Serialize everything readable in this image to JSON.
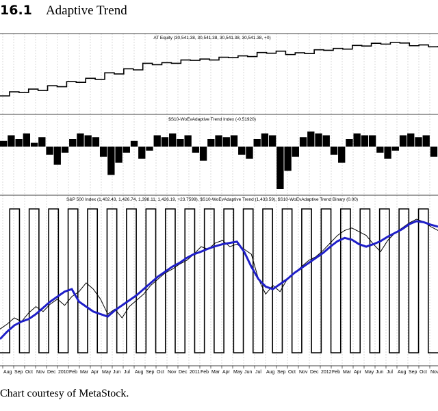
{
  "figure": {
    "number": "16.1",
    "title": "Adaptive Trend",
    "credit": "Chart courtesy of MetaStock."
  },
  "chart_data": [
    {
      "type": "line",
      "title": "AT Equity (30,541.38, 30,541.38, 30,541.38, 30,541.38, +0)",
      "series": [
        {
          "values": [
            100,
            130,
            125,
            150,
            140,
            175,
            168,
            205,
            200,
            230,
            222,
            270,
            262,
            300,
            292,
            340,
            330,
            345,
            340,
            365,
            362,
            372,
            365,
            385,
            382,
            395,
            390,
            420,
            415,
            430,
            405,
            418,
            412,
            440,
            436,
            450,
            445,
            472,
            468,
            488,
            482,
            494,
            490,
            470,
            476,
            462,
            468
          ]
        }
      ],
      "color": "#000000"
    },
    {
      "type": "bar",
      "title": "$S10-WoEvAdaptive Trend Index (-0.51920)",
      "series": [
        {
          "values": [
            0.15,
            0.3,
            0.2,
            0.35,
            0.1,
            0.25,
            -0.4,
            -0.9,
            -0.3,
            0.2,
            0.35,
            0.3,
            0.25,
            -0.5,
            -1.4,
            -0.8,
            -0.3,
            0.15,
            -0.6,
            -0.2,
            0.3,
            0.25,
            0.35,
            0.2,
            0.3,
            -0.3,
            -0.7,
            0.2,
            0.3,
            0.25,
            0.3,
            -0.4,
            -0.6,
            0.2,
            0.35,
            0.3,
            -2.1,
            -1.2,
            -0.5,
            0.25,
            0.4,
            0.35,
            0.3,
            -0.4,
            -0.8,
            0.2,
            0.35,
            0.3,
            0.3,
            -0.3,
            -0.6,
            -0.2,
            0.3,
            0.35,
            0.25,
            0.3,
            -0.5
          ]
        }
      ],
      "color": "#000000"
    },
    {
      "type": "line",
      "title": "S&P 500 Index (1,402.43, 1,426.74, 1,398.11, 1,426.19, +23.7599), $S10-WoEvAdaptive Trend (1,433.59), $S10-WoEvAdaptive Trend Binary (0.00)",
      "x_tick_labels": [
        "Aug",
        "Sep",
        "Oct",
        "Nov",
        "Dec",
        "2010",
        "Feb",
        "Mar",
        "Apr",
        "May",
        "Jun",
        "Jul",
        "Aug",
        "Sep",
        "Oct",
        "Nov",
        "Dec",
        "2011",
        "Feb",
        "Mar",
        "Apr",
        "May",
        "Jun",
        "Jul",
        "Aug",
        "Sep",
        "Oct",
        "Nov",
        "Dec",
        "2012",
        "Feb",
        "Mar",
        "Apr",
        "May",
        "Jun",
        "Jul",
        "Aug",
        "Sep",
        "Oct",
        "Nov"
      ],
      "series": [
        {
          "values": [
            1000,
            1020,
            1045,
            1030,
            1065,
            1090,
            1070,
            1100,
            1120,
            1095,
            1130,
            1150,
            1185,
            1160,
            1120,
            1060,
            1080,
            1045,
            1090,
            1115,
            1140,
            1175,
            1200,
            1225,
            1240,
            1260,
            1275,
            1300,
            1330,
            1320,
            1345,
            1355,
            1330,
            1340,
            1320,
            1300,
            1200,
            1140,
            1175,
            1150,
            1200,
            1225,
            1250,
            1275,
            1290,
            1315,
            1345,
            1375,
            1395,
            1405,
            1390,
            1375,
            1340,
            1310,
            1355,
            1385,
            1405,
            1425,
            1440,
            1430,
            1410,
            1395
          ]
        },
        {
          "values": [
            960,
            990,
            1015,
            1030,
            1040,
            1060,
            1085,
            1110,
            1130,
            1150,
            1160,
            1110,
            1090,
            1070,
            1060,
            1050,
            1075,
            1095,
            1115,
            1135,
            1160,
            1185,
            1210,
            1230,
            1250,
            1265,
            1285,
            1300,
            1310,
            1322,
            1332,
            1340,
            1345,
            1350,
            1310,
            1250,
            1200,
            1170,
            1160,
            1180,
            1200,
            1225,
            1245,
            1265,
            1285,
            1305,
            1330,
            1352,
            1365,
            1358,
            1340,
            1330,
            1340,
            1352,
            1370,
            1385,
            1400,
            1420,
            1432,
            1428,
            1418,
            1410
          ]
        }
      ],
      "colors": [
        "#000000",
        "#1f1fc8"
      ],
      "binary": {
        "values": [
          0,
          1,
          0,
          1,
          0,
          1,
          0,
          1,
          0,
          1,
          0,
          1,
          0,
          1,
          0,
          1,
          0,
          1,
          0,
          1,
          0,
          1,
          0,
          1,
          0,
          1,
          0,
          1,
          0,
          1,
          0,
          1,
          0,
          1,
          0,
          1,
          0,
          1,
          0,
          1,
          0,
          1,
          0,
          1,
          0
        ],
        "color": "#000000"
      }
    }
  ]
}
